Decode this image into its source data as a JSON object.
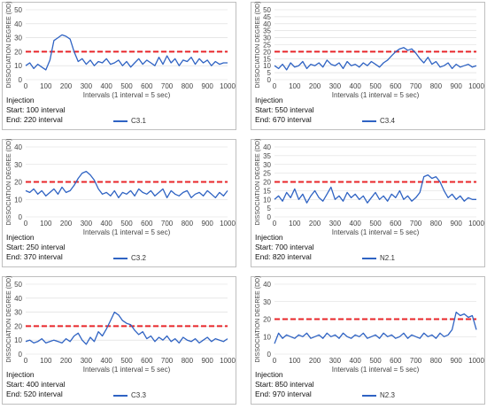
{
  "chart_data": [
    {
      "type": "line",
      "xlabel": "Intervals (1 interval = 5 sec)",
      "ylabel": "DISSOCIATION DEGREE (DD)",
      "xticks": [
        0,
        100,
        200,
        300,
        400,
        500,
        600,
        700,
        800,
        900,
        1000
      ],
      "yticks": [
        0,
        10,
        20,
        30,
        40,
        50
      ],
      "xlim": [
        0,
        1000
      ],
      "ylim": [
        0,
        50
      ],
      "threshold": 20,
      "series": [
        {
          "name": "C3.1",
          "x": [
            0,
            20,
            40,
            60,
            80,
            100,
            120,
            140,
            160,
            180,
            200,
            220,
            240,
            260,
            280,
            300,
            320,
            340,
            360,
            380,
            400,
            420,
            440,
            460,
            480,
            500,
            520,
            540,
            560,
            580,
            600,
            620,
            640,
            660,
            680,
            700,
            720,
            740,
            760,
            780,
            800,
            820,
            840,
            860,
            880,
            900,
            920,
            940,
            960,
            980,
            1000
          ],
          "values": [
            10,
            12,
            8,
            11,
            9,
            7,
            14,
            28,
            30,
            32,
            31,
            29,
            20,
            13,
            15,
            11,
            14,
            10,
            13,
            12,
            15,
            11,
            12,
            14,
            10,
            13,
            9,
            12,
            15,
            11,
            14,
            12,
            10,
            16,
            11,
            17,
            12,
            15,
            10,
            14,
            13,
            16,
            11,
            15,
            12,
            14,
            10,
            13,
            11,
            12,
            12
          ]
        }
      ],
      "injection": {
        "title": "Injection",
        "start": "Start: 100 interval",
        "end": "End:   220 interval"
      }
    },
    {
      "type": "line",
      "xlabel": "Intervals (1 interval = 5 sec)",
      "ylabel": "DISSOCIATION DEGREE (DD)",
      "xticks": [
        0,
        100,
        200,
        300,
        400,
        500,
        600,
        700,
        800,
        900,
        1000
      ],
      "yticks": [
        0,
        5,
        10,
        15,
        20,
        25,
        30,
        35,
        40,
        45,
        50
      ],
      "xlim": [
        0,
        1000
      ],
      "ylim": [
        0,
        50
      ],
      "threshold": 20,
      "series": [
        {
          "name": "C3.4",
          "x": [
            0,
            20,
            40,
            60,
            80,
            100,
            120,
            140,
            160,
            180,
            200,
            220,
            240,
            260,
            280,
            300,
            320,
            340,
            360,
            380,
            400,
            420,
            440,
            460,
            480,
            500,
            520,
            540,
            560,
            580,
            600,
            620,
            640,
            660,
            680,
            700,
            720,
            740,
            760,
            780,
            800,
            820,
            840,
            860,
            880,
            900,
            920,
            940,
            960,
            980,
            1000
          ],
          "values": [
            10,
            8,
            11,
            7,
            12,
            9,
            10,
            13,
            8,
            11,
            10,
            12,
            9,
            14,
            11,
            10,
            12,
            8,
            13,
            10,
            11,
            9,
            12,
            10,
            13,
            11,
            9,
            12,
            14,
            17,
            20,
            22,
            23,
            21,
            22,
            19,
            15,
            12,
            16,
            11,
            13,
            9,
            10,
            12,
            8,
            11,
            9,
            10,
            11,
            9,
            10
          ]
        }
      ],
      "injection": {
        "title": "Injection",
        "start": "Start: 550 interval",
        "end": "End:   670 interval"
      }
    },
    {
      "type": "line",
      "xlabel": "Intervals (1 interval = 5 sec)",
      "ylabel": "DISSOCIATION DEGREE (DD)",
      "xticks": [
        0,
        100,
        200,
        300,
        400,
        500,
        600,
        700,
        800,
        900,
        1000
      ],
      "yticks": [
        0,
        10,
        20,
        30,
        40
      ],
      "xlim": [
        0,
        1000
      ],
      "ylim": [
        0,
        40
      ],
      "threshold": 20,
      "series": [
        {
          "name": "C3.2",
          "x": [
            0,
            20,
            40,
            60,
            80,
            100,
            120,
            140,
            160,
            180,
            200,
            220,
            240,
            260,
            280,
            300,
            320,
            340,
            360,
            380,
            400,
            420,
            440,
            460,
            480,
            500,
            520,
            540,
            560,
            580,
            600,
            620,
            640,
            660,
            680,
            700,
            720,
            740,
            760,
            780,
            800,
            820,
            840,
            860,
            880,
            900,
            920,
            940,
            960,
            980,
            1000
          ],
          "values": [
            15,
            14,
            16,
            13,
            15,
            12,
            14,
            16,
            13,
            17,
            14,
            15,
            18,
            22,
            25,
            26,
            24,
            21,
            16,
            13,
            14,
            12,
            15,
            11,
            14,
            13,
            15,
            12,
            16,
            14,
            13,
            15,
            12,
            14,
            16,
            11,
            15,
            13,
            12,
            14,
            15,
            11,
            13,
            14,
            12,
            15,
            13,
            11,
            14,
            12,
            15
          ]
        }
      ],
      "injection": {
        "title": "Injection",
        "start": "Start: 250 interval",
        "end": "End:   370 interval"
      }
    },
    {
      "type": "line",
      "xlabel": "Intervals (1 interval = 5 sec)",
      "ylabel": "DISSOCIATION DEGREE (DD)",
      "xticks": [
        0,
        100,
        200,
        300,
        400,
        500,
        600,
        700,
        800,
        900,
        1000
      ],
      "yticks": [
        0,
        5,
        10,
        15,
        20,
        25,
        30,
        35,
        40
      ],
      "xlim": [
        0,
        1000
      ],
      "ylim": [
        0,
        40
      ],
      "threshold": 20,
      "series": [
        {
          "name": "N2.1",
          "x": [
            0,
            20,
            40,
            60,
            80,
            100,
            120,
            140,
            160,
            180,
            200,
            220,
            240,
            260,
            280,
            300,
            320,
            340,
            360,
            380,
            400,
            420,
            440,
            460,
            480,
            500,
            520,
            540,
            560,
            580,
            600,
            620,
            640,
            660,
            680,
            700,
            720,
            740,
            760,
            780,
            800,
            820,
            840,
            860,
            880,
            900,
            920,
            940,
            960,
            980,
            1000
          ],
          "values": [
            10,
            12,
            9,
            14,
            11,
            16,
            10,
            13,
            8,
            12,
            15,
            11,
            9,
            13,
            17,
            10,
            12,
            9,
            14,
            11,
            13,
            10,
            12,
            8,
            11,
            14,
            10,
            12,
            9,
            13,
            11,
            15,
            10,
            12,
            9,
            11,
            14,
            23,
            24,
            22,
            23,
            20,
            15,
            11,
            13,
            10,
            12,
            9,
            11,
            10,
            10
          ]
        }
      ],
      "injection": {
        "title": "Injection",
        "start": "Start: 700 interval",
        "end": "End:   820 interval"
      }
    },
    {
      "type": "line",
      "xlabel": "Intervals (1 interval = 5 sec)",
      "ylabel": "DISSOCIATION DEGREE (DD)",
      "xticks": [
        0,
        100,
        200,
        300,
        400,
        500,
        600,
        700,
        800,
        900,
        1000
      ],
      "yticks": [
        0,
        10,
        20,
        30,
        40,
        50
      ],
      "xlim": [
        0,
        1000
      ],
      "ylim": [
        0,
        50
      ],
      "threshold": 20,
      "series": [
        {
          "name": "C3.3",
          "x": [
            0,
            20,
            40,
            60,
            80,
            100,
            120,
            140,
            160,
            180,
            200,
            220,
            240,
            260,
            280,
            300,
            320,
            340,
            360,
            380,
            400,
            420,
            440,
            460,
            480,
            500,
            520,
            540,
            560,
            580,
            600,
            620,
            640,
            660,
            680,
            700,
            720,
            740,
            760,
            780,
            800,
            820,
            840,
            860,
            880,
            900,
            920,
            940,
            960,
            980,
            1000
          ],
          "values": [
            9,
            10,
            8,
            9,
            11,
            8,
            9,
            10,
            9,
            8,
            11,
            9,
            13,
            15,
            10,
            7,
            12,
            9,
            16,
            13,
            18,
            24,
            30,
            28,
            24,
            22,
            21,
            17,
            14,
            16,
            11,
            13,
            9,
            12,
            10,
            13,
            9,
            11,
            8,
            12,
            10,
            9,
            11,
            8,
            10,
            12,
            9,
            11,
            10,
            9,
            11
          ]
        }
      ],
      "injection": {
        "title": "Injection",
        "start": "Start: 400 interval",
        "end": "End: 520 interval"
      }
    },
    {
      "type": "line",
      "xlabel": "Intervals (1 interval = 5 sec)",
      "ylabel": "DISSOCIATION DEGREE (DD)",
      "xticks": [
        0,
        100,
        200,
        300,
        400,
        500,
        600,
        700,
        800,
        900,
        1000
      ],
      "yticks": [
        0,
        10,
        20,
        30,
        40
      ],
      "xlim": [
        0,
        1000
      ],
      "ylim": [
        0,
        40
      ],
      "threshold": 20,
      "series": [
        {
          "name": "N2.3",
          "x": [
            0,
            20,
            40,
            60,
            80,
            100,
            120,
            140,
            160,
            180,
            200,
            220,
            240,
            260,
            280,
            300,
            320,
            340,
            360,
            380,
            400,
            420,
            440,
            460,
            480,
            500,
            520,
            540,
            560,
            580,
            600,
            620,
            640,
            660,
            680,
            700,
            720,
            740,
            760,
            780,
            800,
            820,
            840,
            860,
            880,
            900,
            920,
            940,
            960,
            980,
            1000
          ],
          "values": [
            6,
            12,
            9,
            11,
            10,
            9,
            11,
            10,
            12,
            9,
            10,
            11,
            9,
            12,
            10,
            11,
            9,
            12,
            10,
            9,
            11,
            10,
            12,
            9,
            10,
            11,
            9,
            12,
            10,
            11,
            9,
            10,
            12,
            9,
            11,
            10,
            9,
            12,
            10,
            11,
            9,
            12,
            10,
            11,
            14,
            24,
            22,
            23,
            21,
            22,
            14
          ]
        }
      ],
      "injection": {
        "title": "Injection",
        "start": "Start: 850 interval",
        "end": "End:   970 interval"
      }
    }
  ],
  "colors": {
    "line": "#2f63c3",
    "threshold": "#e8262a",
    "grid": "#d9d9d9"
  }
}
